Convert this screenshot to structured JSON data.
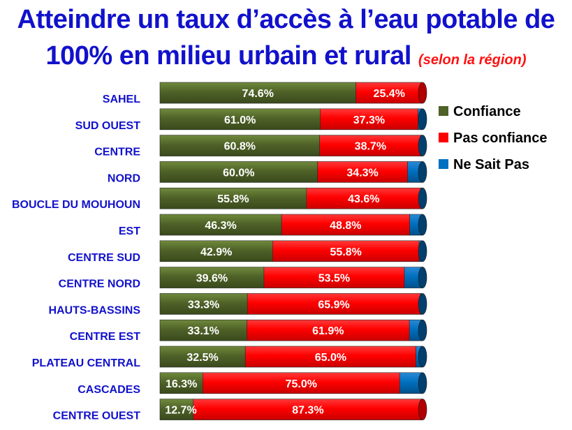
{
  "title_line1": "Atteindre un taux d’accès à l’eau potable de",
  "title_line2": "100% en milieu urbain et rural",
  "subtitle": "(selon la région)",
  "chart_data": {
    "type": "bar",
    "orientation": "horizontal",
    "stacked": true,
    "percent": true,
    "categories": [
      "SAHEL",
      "SUD OUEST",
      "CENTRE",
      "NORD",
      "BOUCLE DU MOUHOUN",
      "EST",
      "CENTRE SUD",
      "CENTRE NORD",
      "HAUTS-BASSINS",
      "CENTRE EST",
      "PLATEAU CENTRAL",
      "CASCADES",
      "CENTRE OUEST"
    ],
    "series": [
      {
        "name": "Confiance",
        "color": "#4f6228",
        "values": [
          74.6,
          61.0,
          60.8,
          60.0,
          55.8,
          46.3,
          42.9,
          39.6,
          33.3,
          33.1,
          32.5,
          16.3,
          12.7
        ],
        "labels": [
          "74.6%",
          "61.0%",
          "60.8%",
          "60.0%",
          "55.8%",
          "46.3%",
          "42.9%",
          "39.6%",
          "33.3%",
          "33.1%",
          "32.5%",
          "16.3%",
          "12.7%"
        ]
      },
      {
        "name": "Pas confiance",
        "color": "#ff0000",
        "values": [
          25.4,
          37.3,
          38.7,
          34.3,
          43.6,
          48.8,
          55.8,
          53.5,
          65.9,
          61.9,
          65.0,
          75.0,
          87.3
        ],
        "labels": [
          "25.4%",
          "37.3%",
          "38.7%",
          "34.3%",
          "43.6%",
          "48.8%",
          "55.8%",
          "53.5%",
          "65.9%",
          "61.9%",
          "65.0%",
          "75.0%",
          "87.3%"
        ]
      },
      {
        "name": "Ne Sait Pas",
        "color": "#0070c0",
        "values": [
          0.0,
          1.7,
          0.5,
          5.7,
          0.6,
          4.9,
          1.3,
          6.9,
          0.8,
          5.0,
          2.5,
          8.7,
          0.0
        ]
      }
    ],
    "legend_position": "right",
    "grid": false
  }
}
